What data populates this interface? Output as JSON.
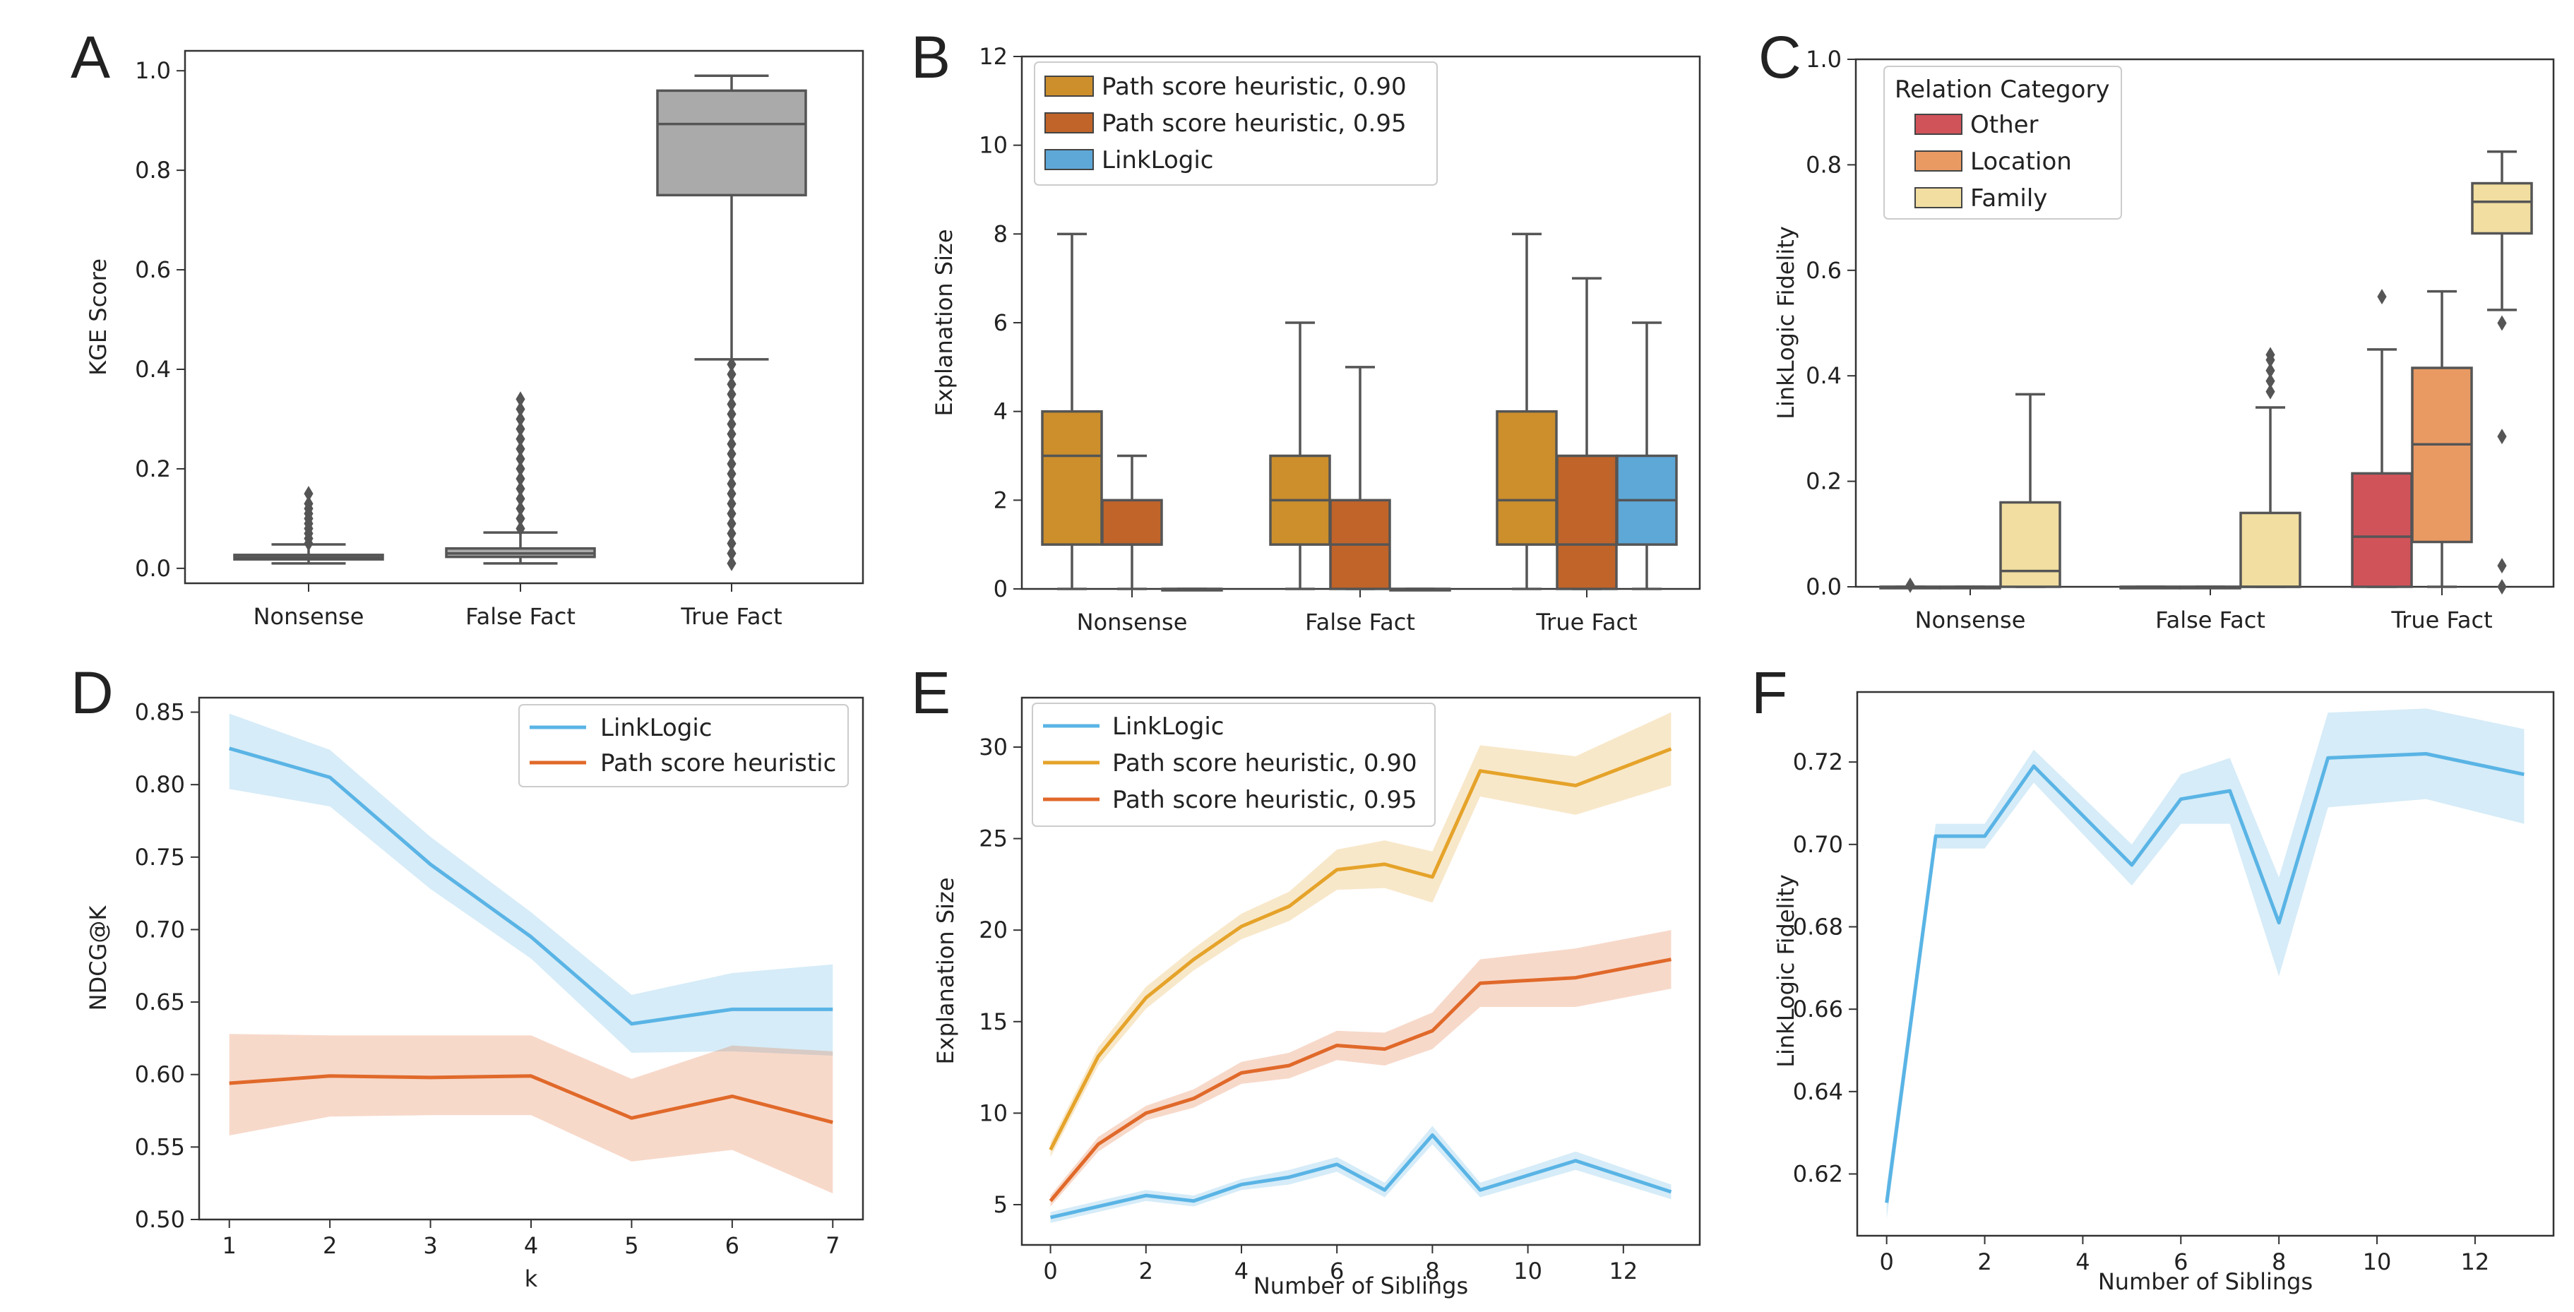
{
  "panels": [
    {
      "letter": "A",
      "chart_data": {
        "type": "box",
        "categories": [
          "Nonsense",
          "False Fact",
          "True Fact"
        ],
        "series": [
          {
            "name": "KGE Score",
            "color": "#aaaaaa",
            "boxes": [
              {
                "category": "Nonsense",
                "whislo": 0.01,
                "q1": 0.018,
                "med": 0.022,
                "q3": 0.027,
                "whishi": 0.048,
                "fliers": [
                  0.05,
                  0.06,
                  0.07,
                  0.08,
                  0.09,
                  0.1,
                  0.11,
                  0.12,
                  0.13,
                  0.15
                ]
              },
              {
                "category": "False Fact",
                "whislo": 0.01,
                "q1": 0.023,
                "med": 0.03,
                "q3": 0.04,
                "whishi": 0.072,
                "fliers": [
                  0.08,
                  0.1,
                  0.12,
                  0.14,
                  0.16,
                  0.18,
                  0.2,
                  0.22,
                  0.24,
                  0.26,
                  0.28,
                  0.3,
                  0.32,
                  0.34
                ]
              },
              {
                "category": "True Fact",
                "whislo": 0.42,
                "q1": 0.75,
                "med": 0.893,
                "q3": 0.96,
                "whishi": 0.99,
                "fliers": [
                  0.01,
                  0.03,
                  0.05,
                  0.07,
                  0.09,
                  0.11,
                  0.13,
                  0.15,
                  0.17,
                  0.19,
                  0.21,
                  0.23,
                  0.25,
                  0.27,
                  0.29,
                  0.31,
                  0.33,
                  0.35,
                  0.37,
                  0.39,
                  0.41
                ]
              }
            ]
          }
        ],
        "xlabel": "",
        "ylabel": "KGE Score",
        "ylim": [
          -0.03,
          1.04
        ],
        "yticks": [
          0.0,
          0.2,
          0.4,
          0.6,
          0.8,
          1.0
        ],
        "ytick_labels": [
          "0.0",
          "0.2",
          "0.4",
          "0.6",
          "0.8",
          "1.0"
        ]
      }
    },
    {
      "letter": "B",
      "chart_data": {
        "type": "box",
        "categories": [
          "Nonsense",
          "False Fact",
          "True Fact"
        ],
        "series": [
          {
            "name": "Path score heuristic, 0.90",
            "color": "#cc8f2c",
            "boxes": [
              {
                "category": "Nonsense",
                "whislo": 0,
                "q1": 1,
                "med": 3,
                "q3": 4,
                "whishi": 8,
                "fliers": []
              },
              {
                "category": "False Fact",
                "whislo": 0,
                "q1": 1,
                "med": 2,
                "q3": 3,
                "whishi": 6,
                "fliers": []
              },
              {
                "category": "True Fact",
                "whislo": 0,
                "q1": 1,
                "med": 2,
                "q3": 4,
                "whishi": 8,
                "fliers": []
              }
            ]
          },
          {
            "name": "Path score heuristic, 0.95",
            "color": "#c0642a",
            "boxes": [
              {
                "category": "Nonsense",
                "whislo": 0,
                "q1": 1,
                "med": 1,
                "q3": 2,
                "whishi": 3,
                "fliers": []
              },
              {
                "category": "False Fact",
                "whislo": 0,
                "q1": 0,
                "med": 1,
                "q3": 2,
                "whishi": 5,
                "fliers": []
              },
              {
                "category": "True Fact",
                "whislo": 0,
                "q1": 0,
                "med": 1,
                "q3": 3,
                "whishi": 7,
                "fliers": []
              }
            ]
          },
          {
            "name": "LinkLogic",
            "color": "#5ea8d8",
            "boxes": [
              {
                "category": "Nonsense",
                "whislo": 0,
                "q1": 0,
                "med": 0,
                "q3": 0,
                "whishi": 0,
                "fliers": []
              },
              {
                "category": "False Fact",
                "whislo": 0,
                "q1": 0,
                "med": 0,
                "q3": 0,
                "whishi": 0,
                "fliers": []
              },
              {
                "category": "True Fact",
                "whislo": 0,
                "q1": 1,
                "med": 2,
                "q3": 3,
                "whishi": 6,
                "fliers": []
              }
            ]
          }
        ],
        "xlabel": "",
        "ylabel": "Explanation Size",
        "ylim": [
          0,
          12
        ],
        "yticks": [
          0,
          2,
          4,
          6,
          8,
          10,
          12
        ],
        "ytick_labels": [
          "0",
          "2",
          "4",
          "6",
          "8",
          "10",
          "12"
        ],
        "legend_title": ""
      }
    },
    {
      "letter": "C",
      "chart_data": {
        "type": "box",
        "categories": [
          "Nonsense",
          "False Fact",
          "True Fact"
        ],
        "series": [
          {
            "name": "Other",
            "color": "#d1535a",
            "boxes": [
              {
                "category": "Nonsense",
                "whislo": 0,
                "q1": 0,
                "med": 0,
                "q3": 0,
                "whishi": 0,
                "fliers": [
                  0.003
                ]
              },
              {
                "category": "False Fact",
                "whislo": 0,
                "q1": 0,
                "med": 0,
                "q3": 0,
                "whishi": 0,
                "fliers": []
              },
              {
                "category": "True Fact",
                "whislo": 0,
                "q1": 0,
                "med": 0.095,
                "q3": 0.215,
                "whishi": 0.45,
                "fliers": [
                  0.55
                ]
              }
            ]
          },
          {
            "name": "Location",
            "color": "#e99a63",
            "boxes": [
              {
                "category": "Nonsense",
                "whislo": 0,
                "q1": 0,
                "med": 0,
                "q3": 0,
                "whishi": 0,
                "fliers": []
              },
              {
                "category": "False Fact",
                "whislo": 0,
                "q1": 0,
                "med": 0,
                "q3": 0,
                "whishi": 0,
                "fliers": []
              },
              {
                "category": "True Fact",
                "whislo": 0,
                "q1": 0.085,
                "med": 0.27,
                "q3": 0.415,
                "whishi": 0.56,
                "fliers": []
              }
            ]
          },
          {
            "name": "Family",
            "color": "#f1dea0",
            "boxes": [
              {
                "category": "Nonsense",
                "whislo": 0,
                "q1": 0,
                "med": 0.03,
                "q3": 0.16,
                "whishi": 0.365,
                "fliers": []
              },
              {
                "category": "False Fact",
                "whislo": 0,
                "q1": 0,
                "med": 0,
                "q3": 0.14,
                "whishi": 0.34,
                "fliers": [
                  0.37,
                  0.39,
                  0.41,
                  0.43,
                  0.44
                ]
              },
              {
                "category": "True Fact",
                "whislo": 0.525,
                "q1": 0.67,
                "med": 0.73,
                "q3": 0.765,
                "whishi": 0.825,
                "fliers": [
                  0.5,
                  0.285,
                  0.04,
                  0.0
                ]
              }
            ]
          }
        ],
        "xlabel": "",
        "ylabel": "LinkLogic Fidelity",
        "ylim": [
          0,
          1.0
        ],
        "yticks": [
          0.0,
          0.2,
          0.4,
          0.6,
          0.8,
          1.0
        ],
        "ytick_labels": [
          "0.0",
          "0.2",
          "0.4",
          "0.6",
          "0.8",
          "1.0"
        ],
        "legend_title": "Relation Category"
      }
    },
    {
      "letter": "D",
      "chart_data": {
        "type": "line",
        "x": [
          1,
          2,
          3,
          4,
          5,
          6,
          7
        ],
        "series": [
          {
            "name": "LinkLogic",
            "color": "#5ab4e5",
            "values": [
              0.825,
              0.805,
              0.745,
              0.695,
              0.635,
              0.645,
              0.645
            ],
            "lower": [
              0.797,
              0.785,
              0.728,
              0.68,
              0.615,
              0.616,
              0.613
            ],
            "upper": [
              0.849,
              0.824,
              0.764,
              0.712,
              0.655,
              0.67,
              0.676
            ]
          },
          {
            "name": "Path score heuristic",
            "color": "#e0692a",
            "values": [
              0.594,
              0.599,
              0.598,
              0.599,
              0.57,
              0.585,
              0.567
            ],
            "lower": [
              0.558,
              0.571,
              0.572,
              0.572,
              0.54,
              0.548,
              0.518
            ],
            "upper": [
              0.628,
              0.627,
              0.627,
              0.627,
              0.597,
              0.62,
              0.616
            ]
          }
        ],
        "xlabel": "k",
        "ylabel": "NDCG@K",
        "xlim": [
          0.7,
          7.3
        ],
        "ylim": [
          0.5,
          0.86
        ],
        "xticks": [
          1,
          2,
          3,
          4,
          5,
          6,
          7
        ],
        "xtick_labels": [
          "1",
          "2",
          "3",
          "4",
          "5",
          "6",
          "7"
        ],
        "yticks": [
          0.5,
          0.55,
          0.6,
          0.65,
          0.7,
          0.75,
          0.8,
          0.85
        ],
        "ytick_labels": [
          "0.50",
          "0.55",
          "0.60",
          "0.65",
          "0.70",
          "0.75",
          "0.80",
          "0.85"
        ]
      }
    },
    {
      "letter": "E",
      "chart_data": {
        "type": "line",
        "x": [
          0,
          1,
          2,
          3,
          4,
          5,
          6,
          7,
          8,
          9,
          11,
          13
        ],
        "series": [
          {
            "name": "LinkLogic",
            "color": "#5ab4e5",
            "values": [
              4.3,
              4.9,
              5.5,
              5.2,
              6.1,
              6.5,
              7.2,
              5.8,
              8.8,
              5.8,
              7.4,
              5.7
            ],
            "lower": [
              4.0,
              4.6,
              5.2,
              4.9,
              5.8,
              6.1,
              6.8,
              5.4,
              8.3,
              5.4,
              6.9,
              5.3
            ],
            "upper": [
              4.6,
              5.2,
              5.8,
              5.5,
              6.4,
              6.9,
              7.6,
              6.2,
              9.3,
              6.2,
              7.9,
              6.1
            ]
          },
          {
            "name": "Path score heuristic, 0.90",
            "color": "#e5a32a",
            "values": [
              8.0,
              13.1,
              16.3,
              18.4,
              20.2,
              21.3,
              23.3,
              23.6,
              22.9,
              28.7,
              27.9,
              29.9
            ],
            "lower": [
              7.6,
              12.6,
              15.7,
              17.8,
              19.5,
              20.5,
              22.2,
              22.3,
              21.5,
              27.3,
              26.3,
              27.9
            ],
            "upper": [
              8.4,
              13.6,
              16.9,
              19.0,
              20.9,
              22.1,
              24.4,
              24.9,
              24.3,
              30.1,
              29.5,
              31.9
            ]
          },
          {
            "name": "Path score heuristic, 0.95",
            "color": "#e0692a",
            "values": [
              5.2,
              8.3,
              10.0,
              10.8,
              12.2,
              12.6,
              13.7,
              13.5,
              14.5,
              17.1,
              17.4,
              18.4
            ],
            "lower": [
              4.9,
              7.9,
              9.6,
              10.3,
              11.6,
              11.9,
              12.9,
              12.6,
              13.5,
              15.8,
              15.8,
              16.8
            ],
            "upper": [
              5.5,
              8.7,
              10.4,
              11.3,
              12.8,
              13.3,
              14.5,
              14.4,
              15.5,
              18.4,
              19.0,
              20.0
            ]
          }
        ],
        "xlabel": "Number of Siblings",
        "ylabel": "Explanation Size",
        "xlim": [
          -0.6,
          13.6
        ],
        "ylim": [
          2.8,
          32.7
        ],
        "xticks": [
          0,
          2,
          4,
          6,
          8,
          10,
          12
        ],
        "xtick_labels": [
          "0",
          "2",
          "4",
          "6",
          "8",
          "10",
          "12"
        ],
        "yticks": [
          5,
          10,
          15,
          20,
          25,
          30
        ],
        "ytick_labels": [
          "5",
          "10",
          "15",
          "20",
          "25",
          "30"
        ]
      }
    },
    {
      "letter": "F",
      "chart_data": {
        "type": "line",
        "x": [
          0,
          1,
          2,
          3,
          5,
          6,
          7,
          8,
          9,
          11,
          13
        ],
        "series": [
          {
            "name": "LinkLogic Fidelity",
            "color": "#5ab4e5",
            "values": [
              0.613,
              0.702,
              0.702,
              0.719,
              0.695,
              0.711,
              0.713,
              0.681,
              0.721,
              0.722,
              0.717
            ],
            "lower": [
              0.609,
              0.699,
              0.699,
              0.715,
              0.69,
              0.705,
              0.705,
              0.668,
              0.709,
              0.711,
              0.705
            ],
            "upper": [
              0.617,
              0.705,
              0.705,
              0.723,
              0.7,
              0.717,
              0.721,
              0.692,
              0.732,
              0.733,
              0.728
            ]
          }
        ],
        "xlabel": "Number of Siblings",
        "ylabel": "LinkLogic Fidelity",
        "xlim": [
          -0.6,
          13.6
        ],
        "ylim": [
          0.605,
          0.737
        ],
        "xticks": [
          0,
          2,
          4,
          6,
          8,
          10,
          12
        ],
        "xtick_labels": [
          "0",
          "2",
          "4",
          "6",
          "8",
          "10",
          "12"
        ],
        "yticks": [
          0.62,
          0.64,
          0.66,
          0.68,
          0.7,
          0.72
        ],
        "ytick_labels": [
          "0.62",
          "0.64",
          "0.66",
          "0.68",
          "0.70",
          "0.72"
        ]
      }
    }
  ]
}
